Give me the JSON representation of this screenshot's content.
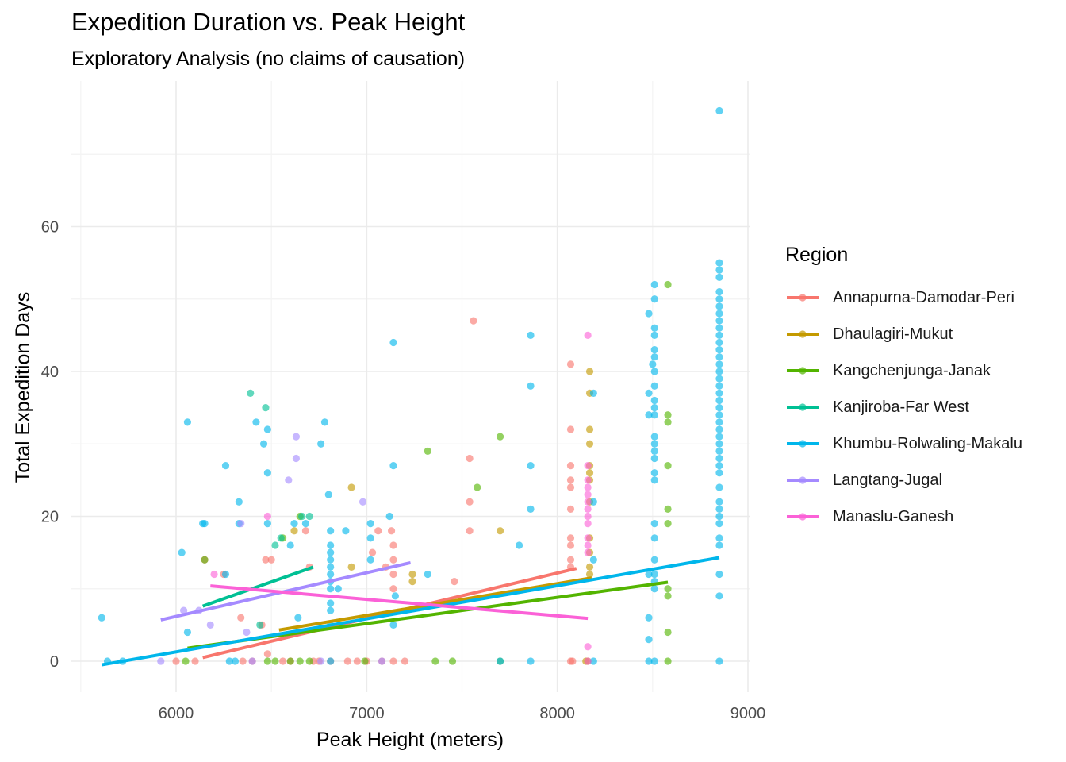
{
  "chart_data": {
    "type": "scatter",
    "title": "Expedition Duration vs. Peak Height",
    "subtitle": "Exploratory Analysis (no claims of causation)",
    "xlabel": "Peak Height (meters)",
    "ylabel": "Total Expedition Days",
    "xlim": [
      5500,
      9000
    ],
    "ylim": [
      -4,
      78
    ],
    "x_ticks": [
      6000,
      7000,
      8000,
      9000
    ],
    "y_ticks": [
      0,
      20,
      40,
      60
    ],
    "grid": true,
    "legend_title": "Region",
    "legend_position": "right",
    "series": [
      {
        "name": "Annapurna-Damodar-Peri",
        "color": "#F8766D",
        "points": [
          [
            6000,
            0
          ],
          [
            6100,
            0
          ],
          [
            6150,
            14
          ],
          [
            6250,
            12
          ],
          [
            6340,
            6
          ],
          [
            6350,
            0
          ],
          [
            6400,
            0
          ],
          [
            6450,
            5
          ],
          [
            6470,
            14
          ],
          [
            6480,
            1
          ],
          [
            6500,
            14
          ],
          [
            6560,
            0
          ],
          [
            6600,
            0
          ],
          [
            6680,
            18
          ],
          [
            6700,
            13
          ],
          [
            6720,
            0
          ],
          [
            6750,
            0
          ],
          [
            6810,
            0
          ],
          [
            6900,
            0
          ],
          [
            6950,
            0
          ],
          [
            7000,
            0
          ],
          [
            7030,
            15
          ],
          [
            7060,
            18
          ],
          [
            7080,
            0
          ],
          [
            7100,
            13
          ],
          [
            7130,
            18
          ],
          [
            7140,
            16
          ],
          [
            7140,
            14
          ],
          [
            7140,
            12
          ],
          [
            7140,
            10
          ],
          [
            7140,
            0
          ],
          [
            7200,
            0
          ],
          [
            7460,
            11
          ],
          [
            7540,
            18
          ],
          [
            7540,
            22
          ],
          [
            7540,
            28
          ],
          [
            7560,
            47
          ],
          [
            8070,
            41
          ],
          [
            8070,
            32
          ],
          [
            8070,
            27
          ],
          [
            8070,
            25
          ],
          [
            8070,
            24
          ],
          [
            8070,
            21
          ],
          [
            8070,
            17
          ],
          [
            8070,
            16
          ],
          [
            8070,
            14
          ],
          [
            8070,
            13
          ],
          [
            8070,
            0
          ],
          [
            8080,
            0
          ]
        ],
        "trend": [
          [
            6140,
            0.5
          ],
          [
            8100,
            12.8
          ]
        ]
      },
      {
        "name": "Dhaulagiri-Mukut",
        "color": "#C49A00",
        "points": [
          [
            6620,
            18
          ],
          [
            6920,
            24
          ],
          [
            6920,
            13
          ],
          [
            7240,
            12
          ],
          [
            7240,
            11
          ],
          [
            7700,
            18
          ],
          [
            8150,
            0
          ],
          [
            8160,
            0
          ],
          [
            8170,
            40
          ],
          [
            8170,
            37
          ],
          [
            8170,
            32
          ],
          [
            8170,
            30
          ],
          [
            8170,
            27
          ],
          [
            8170,
            26
          ],
          [
            8170,
            25
          ],
          [
            8170,
            22
          ],
          [
            8170,
            17
          ],
          [
            8170,
            15
          ],
          [
            8170,
            13
          ],
          [
            8170,
            12
          ]
        ],
        "trend": [
          [
            6540,
            4.3
          ],
          [
            8180,
            11.5
          ]
        ]
      },
      {
        "name": "Kangchenjunga-Janak",
        "color": "#53B400",
        "points": [
          [
            6050,
            0
          ],
          [
            6150,
            14
          ],
          [
            6480,
            0
          ],
          [
            6520,
            0
          ],
          [
            6560,
            17
          ],
          [
            6600,
            0
          ],
          [
            6650,
            20
          ],
          [
            6650,
            0
          ],
          [
            6700,
            0
          ],
          [
            6990,
            0
          ],
          [
            7320,
            29
          ],
          [
            7360,
            0
          ],
          [
            7450,
            0
          ],
          [
            7580,
            24
          ],
          [
            7700,
            31
          ],
          [
            7700,
            0
          ],
          [
            8580,
            52
          ],
          [
            8580,
            34
          ],
          [
            8580,
            33
          ],
          [
            8580,
            27
          ],
          [
            8580,
            21
          ],
          [
            8580,
            19
          ],
          [
            8580,
            10
          ],
          [
            8580,
            9
          ],
          [
            8580,
            4
          ],
          [
            8580,
            0
          ]
        ],
        "trend": [
          [
            6060,
            1.8
          ],
          [
            8580,
            10.9
          ]
        ]
      },
      {
        "name": "Kanjiroba-Far West",
        "color": "#00C094",
        "points": [
          [
            6390,
            37
          ],
          [
            6440,
            5
          ],
          [
            6470,
            35
          ],
          [
            6520,
            16
          ],
          [
            6550,
            17
          ],
          [
            6660,
            20
          ],
          [
            6700,
            20
          ]
        ],
        "trend": [
          [
            6140,
            7.6
          ],
          [
            6720,
            13
          ]
        ]
      },
      {
        "name": "Khumbu-Rolwaling-Makalu",
        "color": "#00B6EB",
        "points": [
          [
            5610,
            6
          ],
          [
            5640,
            0
          ],
          [
            5720,
            0
          ],
          [
            6030,
            15
          ],
          [
            6060,
            33
          ],
          [
            6060,
            4
          ],
          [
            6140,
            19
          ],
          [
            6150,
            19
          ],
          [
            6260,
            27
          ],
          [
            6260,
            12
          ],
          [
            6280,
            0
          ],
          [
            6310,
            0
          ],
          [
            6330,
            22
          ],
          [
            6330,
            19
          ],
          [
            6420,
            33
          ],
          [
            6460,
            30
          ],
          [
            6480,
            32
          ],
          [
            6480,
            26
          ],
          [
            6480,
            19
          ],
          [
            6600,
            16
          ],
          [
            6620,
            19
          ],
          [
            6640,
            6
          ],
          [
            6680,
            19
          ],
          [
            6760,
            30
          ],
          [
            6780,
            33
          ],
          [
            6800,
            23
          ],
          [
            6810,
            18
          ],
          [
            6810,
            16
          ],
          [
            6810,
            15
          ],
          [
            6810,
            14
          ],
          [
            6810,
            13
          ],
          [
            6810,
            12
          ],
          [
            6810,
            11
          ],
          [
            6810,
            10
          ],
          [
            6810,
            8
          ],
          [
            6810,
            7
          ],
          [
            6810,
            5
          ],
          [
            6810,
            0
          ],
          [
            6850,
            10
          ],
          [
            6890,
            18
          ],
          [
            7020,
            19
          ],
          [
            7020,
            17
          ],
          [
            7020,
            14
          ],
          [
            7120,
            20
          ],
          [
            7140,
            44
          ],
          [
            7140,
            27
          ],
          [
            7140,
            5
          ],
          [
            7150,
            9
          ],
          [
            7320,
            12
          ],
          [
            7700,
            0
          ],
          [
            7800,
            16
          ],
          [
            7860,
            45
          ],
          [
            7860,
            38
          ],
          [
            7860,
            27
          ],
          [
            7860,
            21
          ],
          [
            7860,
            0
          ],
          [
            8190,
            37
          ],
          [
            8190,
            22
          ],
          [
            8190,
            14
          ],
          [
            8190,
            0
          ],
          [
            8480,
            48
          ],
          [
            8480,
            37
          ],
          [
            8480,
            34
          ],
          [
            8480,
            12
          ],
          [
            8480,
            6
          ],
          [
            8480,
            3
          ],
          [
            8480,
            0
          ],
          [
            8500,
            41
          ],
          [
            8510,
            52
          ],
          [
            8510,
            50
          ],
          [
            8510,
            46
          ],
          [
            8510,
            45
          ],
          [
            8510,
            43
          ],
          [
            8510,
            42
          ],
          [
            8510,
            40
          ],
          [
            8510,
            38
          ],
          [
            8510,
            36
          ],
          [
            8510,
            35
          ],
          [
            8510,
            34
          ],
          [
            8510,
            31
          ],
          [
            8510,
            30
          ],
          [
            8510,
            29
          ],
          [
            8510,
            28
          ],
          [
            8510,
            26
          ],
          [
            8510,
            25
          ],
          [
            8510,
            19
          ],
          [
            8510,
            17
          ],
          [
            8510,
            14
          ],
          [
            8510,
            12
          ],
          [
            8510,
            11
          ],
          [
            8510,
            10
          ],
          [
            8510,
            0
          ],
          [
            8850,
            76
          ],
          [
            8850,
            55
          ],
          [
            8850,
            54
          ],
          [
            8850,
            53
          ],
          [
            8850,
            51
          ],
          [
            8850,
            50
          ],
          [
            8850,
            49
          ],
          [
            8850,
            48
          ],
          [
            8850,
            47
          ],
          [
            8850,
            46
          ],
          [
            8850,
            45
          ],
          [
            8850,
            44
          ],
          [
            8850,
            43
          ],
          [
            8850,
            42
          ],
          [
            8850,
            41
          ],
          [
            8850,
            40
          ],
          [
            8850,
            39
          ],
          [
            8850,
            38
          ],
          [
            8850,
            37
          ],
          [
            8850,
            36
          ],
          [
            8850,
            35
          ],
          [
            8850,
            34
          ],
          [
            8850,
            33
          ],
          [
            8850,
            32
          ],
          [
            8850,
            31
          ],
          [
            8850,
            30
          ],
          [
            8850,
            29
          ],
          [
            8850,
            28
          ],
          [
            8850,
            27
          ],
          [
            8850,
            26
          ],
          [
            8850,
            24
          ],
          [
            8850,
            22
          ],
          [
            8850,
            21
          ],
          [
            8850,
            20
          ],
          [
            8850,
            19
          ],
          [
            8850,
            17
          ],
          [
            8850,
            16
          ],
          [
            8850,
            12
          ],
          [
            8850,
            9
          ],
          [
            8850,
            0
          ]
        ],
        "trend": [
          [
            5610,
            -0.5
          ],
          [
            8850,
            14.3
          ]
        ]
      },
      {
        "name": "Langtang-Jugal",
        "color": "#A58AFF",
        "points": [
          [
            5920,
            0
          ],
          [
            6040,
            7
          ],
          [
            6120,
            7
          ],
          [
            6180,
            5
          ],
          [
            6340,
            19
          ],
          [
            6370,
            4
          ],
          [
            6400,
            0
          ],
          [
            6590,
            25
          ],
          [
            6630,
            31
          ],
          [
            6630,
            28
          ],
          [
            6760,
            0
          ],
          [
            6980,
            22
          ],
          [
            7080,
            0
          ]
        ],
        "trend": [
          [
            5920,
            5.7
          ],
          [
            7230,
            13.6
          ]
        ]
      },
      {
        "name": "Manaslu-Ganesh",
        "color": "#FB61D7",
        "points": [
          [
            6200,
            12
          ],
          [
            6480,
            20
          ],
          [
            8160,
            45
          ],
          [
            8160,
            27
          ],
          [
            8160,
            25
          ],
          [
            8160,
            24
          ],
          [
            8160,
            23
          ],
          [
            8160,
            22
          ],
          [
            8160,
            21
          ],
          [
            8160,
            20
          ],
          [
            8160,
            19
          ],
          [
            8160,
            17
          ],
          [
            8160,
            16
          ],
          [
            8160,
            15
          ],
          [
            8160,
            2
          ],
          [
            8160,
            0
          ]
        ],
        "trend": [
          [
            6180,
            10.4
          ],
          [
            8160,
            5.9
          ]
        ]
      }
    ]
  }
}
